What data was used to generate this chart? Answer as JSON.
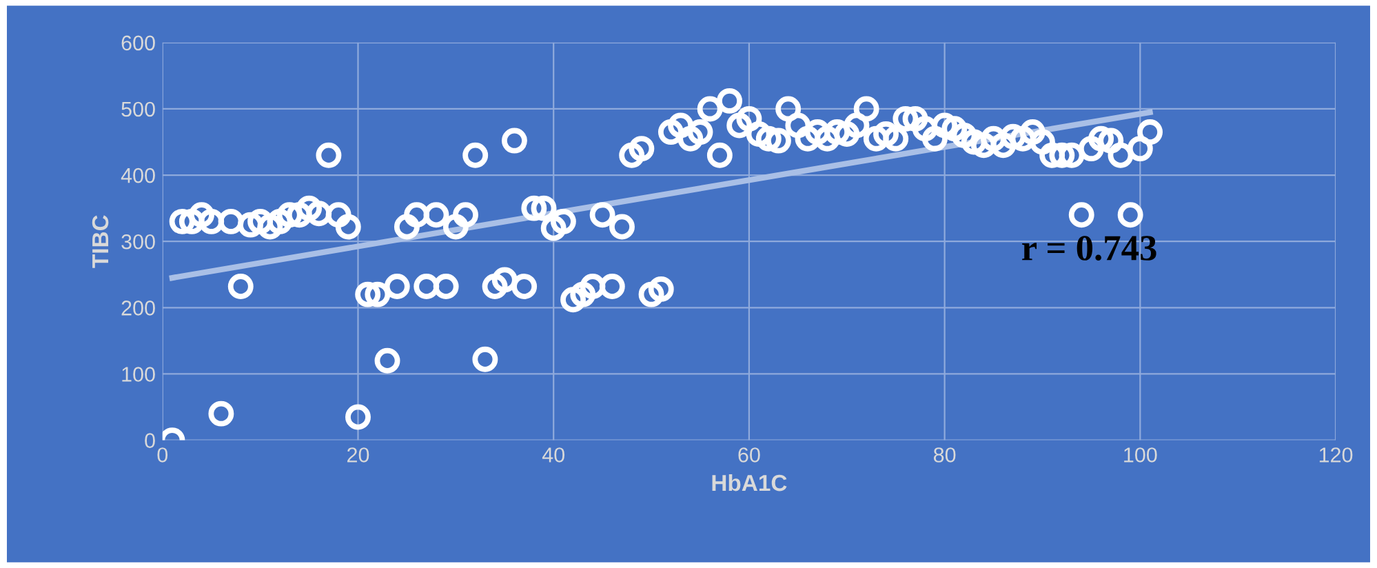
{
  "chart_data": {
    "type": "scatter",
    "xlabel": "HbA1C",
    "ylabel": "TIBC",
    "xlim": [
      0,
      120
    ],
    "xticks": [
      0,
      20,
      40,
      60,
      80,
      100,
      120
    ],
    "ylim": [
      0,
      600
    ],
    "yticks": [
      0,
      100,
      200,
      300,
      400,
      500,
      600
    ],
    "grid": true,
    "marker": "circle",
    "legend": false,
    "annotations": [
      "r = 0.743"
    ],
    "series": [
      {
        "color": "#ffffff",
        "x": [
          1,
          2,
          3,
          4,
          5,
          6,
          7,
          8,
          9,
          10,
          11,
          12,
          13,
          14,
          15,
          16,
          17,
          18,
          19,
          20,
          21,
          22,
          23,
          24,
          25,
          26,
          27,
          28,
          29,
          30,
          31,
          32,
          33,
          34,
          35,
          36,
          37,
          38,
          39,
          40,
          41,
          42,
          43,
          44,
          45,
          46,
          47,
          48,
          49,
          50,
          51,
          52,
          53,
          54,
          55,
          56,
          57,
          58,
          59,
          60,
          61,
          62,
          63,
          64,
          65,
          66,
          67,
          68,
          69,
          70,
          71,
          72,
          73,
          74,
          75,
          76,
          77,
          78,
          79,
          80,
          81,
          82,
          83,
          84,
          85,
          86,
          87,
          88,
          89,
          90,
          91,
          92,
          93,
          94,
          95,
          96,
          97,
          98,
          99,
          100,
          101
        ],
        "values": [
          0,
          330,
          330,
          340,
          330,
          40,
          330,
          232,
          325,
          330,
          322,
          330,
          340,
          340,
          350,
          342,
          430,
          340,
          322,
          35,
          220,
          220,
          120,
          232,
          322,
          340,
          232,
          340,
          232,
          322,
          340,
          430,
          122,
          232,
          242,
          452,
          232,
          350,
          350,
          320,
          330,
          212,
          220,
          232,
          340,
          232,
          322,
          430,
          440,
          220,
          228,
          465,
          475,
          455,
          465,
          500,
          430,
          512,
          475,
          485,
          462,
          455,
          452,
          500,
          475,
          455,
          465,
          455,
          465,
          462,
          475,
          500,
          455,
          462,
          455,
          485,
          485,
          470,
          455,
          475,
          470,
          460,
          450,
          445,
          455,
          445,
          458,
          455,
          465,
          450,
          430,
          430,
          430,
          340,
          440,
          455,
          452,
          430,
          340,
          440,
          465
        ]
      },
      {
        "type": "line",
        "color": "#a9bfe6",
        "marker": "none",
        "x": [
          1,
          101
        ],
        "values": [
          245,
          495
        ]
      }
    ]
  }
}
